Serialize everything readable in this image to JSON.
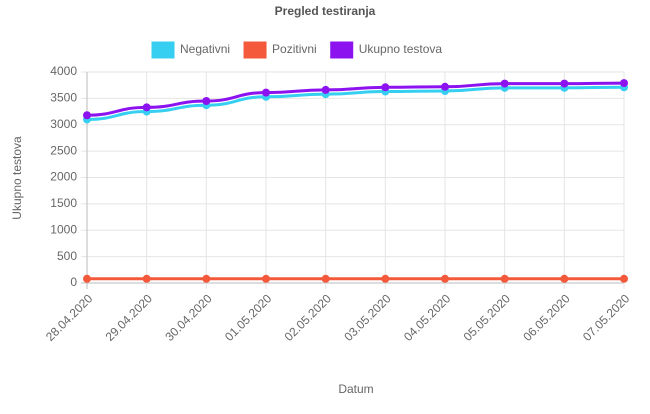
{
  "chart_data": {
    "type": "line",
    "title": "Pregled testiranja",
    "x_label": "Datum",
    "y_label": "Ukupno testova",
    "categories": [
      "28.04.2020",
      "29.04.2020",
      "30.04.2020",
      "01.05.2020",
      "02.05.2020",
      "03.05.2020",
      "04.05.2020",
      "05.05.2020",
      "06.05.2020",
      "07.05.2020"
    ],
    "series": [
      {
        "name": "Negativni",
        "color": "#36cff2",
        "values": [
          3100,
          3250,
          3370,
          3530,
          3580,
          3630,
          3640,
          3700,
          3700,
          3710
        ]
      },
      {
        "name": "Pozitivni",
        "color": "#f4593c",
        "values": [
          80,
          80,
          80,
          80,
          80,
          80,
          80,
          80,
          80,
          80
        ]
      },
      {
        "name": "Ukupno testova",
        "color": "#8c12f0",
        "values": [
          3180,
          3330,
          3450,
          3610,
          3660,
          3710,
          3720,
          3780,
          3780,
          3790
        ]
      }
    ],
    "ylim": [
      0,
      4000
    ],
    "yticks": [
      0,
      500,
      1000,
      1500,
      2000,
      2500,
      3000,
      3500,
      4000
    ],
    "grid": true,
    "legend": "top"
  }
}
